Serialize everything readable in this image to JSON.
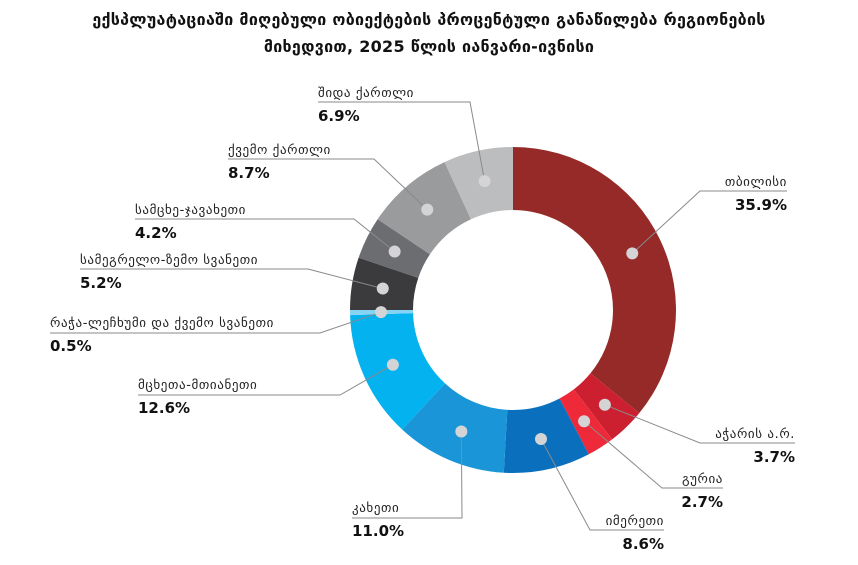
{
  "chart_data": {
    "type": "pie",
    "title_line1": "ექსპლუატაციაში მიღებული ობიექტების პროცენტული განაწილება რეგიონების",
    "title_line2": "მიხედვით, 2025 წლის იანვარი-ივნისი",
    "slices": [
      {
        "label": "თბილისი",
        "value": 35.9,
        "display": "35.9%",
        "color": "#952a28"
      },
      {
        "label": "აჭარის ა.რ.",
        "value": 3.7,
        "display": "3.7%",
        "color": "#cc2030"
      },
      {
        "label": "გურია",
        "value": 2.7,
        "display": "2.7%",
        "color": "#ee2a3a"
      },
      {
        "label": "იმერეთი",
        "value": 8.6,
        "display": "8.6%",
        "color": "#0a6fbd"
      },
      {
        "label": "კახეთი",
        "value": 11.0,
        "display": "11.0%",
        "color": "#1a96d8"
      },
      {
        "label": "მცხეთა-მთიანეთი",
        "value": 12.6,
        "display": "12.6%",
        "color": "#03b2ee"
      },
      {
        "label": "რაჭა-ლეჩხუმი და ქვემო სვანეთი",
        "value": 0.5,
        "display": "0.5%",
        "color": "#86d4f5"
      },
      {
        "label": "სამეგრელო-ზემო სვანეთი",
        "value": 5.2,
        "display": "5.2%",
        "color": "#3b3b3d"
      },
      {
        "label": "სამცხე-ჯავახეთი",
        "value": 4.2,
        "display": "4.2%",
        "color": "#6c6d70"
      },
      {
        "label": "ქვემო ქართლი",
        "value": 8.7,
        "display": "8.7%",
        "color": "#9a9b9d"
      },
      {
        "label": "შიდა ქართლი",
        "value": 6.9,
        "display": "6.9%",
        "color": "#bcbdbf"
      }
    ]
  }
}
